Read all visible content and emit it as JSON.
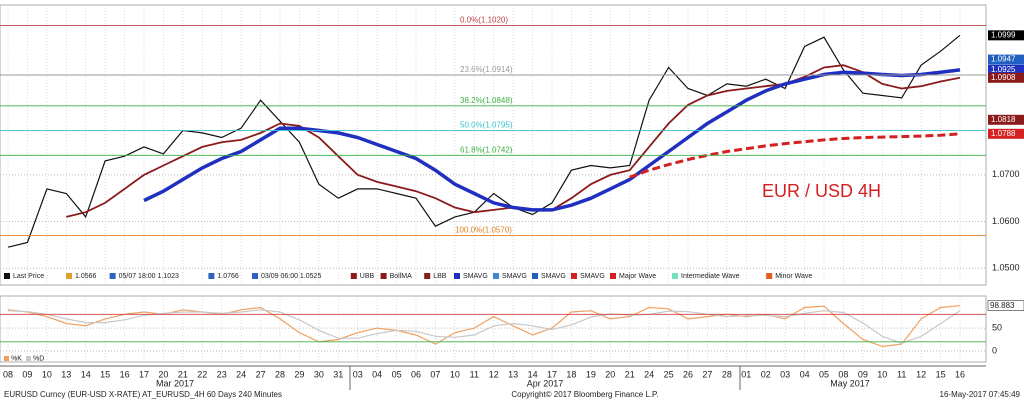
{
  "chart_data": [
    {
      "type": "line",
      "annotation": "EUR / USD 4H",
      "categories": [
        "08",
        "09",
        "10",
        "13",
        "14",
        "15",
        "16",
        "17",
        "20",
        "21",
        "22",
        "23",
        "24",
        "27",
        "28",
        "29",
        "30",
        "31",
        "03",
        "04",
        "05",
        "06",
        "07",
        "10",
        "11",
        "12",
        "13",
        "14",
        "17",
        "18",
        "19",
        "20",
        "21",
        "24",
        "25",
        "26",
        "27",
        "28",
        "01",
        "02",
        "03",
        "04",
        "05",
        "08",
        "09",
        "10",
        "11",
        "12",
        "15",
        "16"
      ],
      "months": [
        "Mar 2017",
        "Apr 2017",
        "May 2017"
      ],
      "series": [
        {
          "name": "Last Price",
          "color": "#111111",
          "values": [
            1.0545,
            1.0555,
            1.067,
            1.066,
            1.061,
            1.073,
            1.074,
            1.076,
            1.0745,
            1.0795,
            1.079,
            1.078,
            1.08,
            1.086,
            1.0815,
            1.077,
            1.068,
            1.065,
            1.067,
            1.067,
            1.066,
            1.065,
            1.059,
            1.061,
            1.062,
            1.066,
            1.063,
            1.0615,
            1.064,
            1.071,
            1.072,
            1.0715,
            1.072,
            1.086,
            1.093,
            1.0885,
            1.087,
            1.0895,
            1.089,
            1.0905,
            1.0885,
            1.0975,
            1.0995,
            1.0925,
            1.0875,
            1.087,
            1.0865,
            1.0935,
            1.0965,
            1.0999
          ]
        },
        {
          "name": "BollMA",
          "color": "#8b1a1a",
          "values": [
            null,
            null,
            null,
            1.061,
            1.062,
            1.064,
            1.067,
            1.07,
            1.072,
            1.074,
            1.076,
            1.077,
            1.0775,
            1.079,
            1.081,
            1.0805,
            1.078,
            1.074,
            1.07,
            1.0685,
            1.0675,
            1.0665,
            1.065,
            1.063,
            1.062,
            1.0625,
            1.063,
            1.0625,
            1.0625,
            1.065,
            1.068,
            1.07,
            1.071,
            1.076,
            1.081,
            1.085,
            1.087,
            1.088,
            1.0885,
            1.089,
            1.0895,
            1.091,
            1.093,
            1.0935,
            1.092,
            1.0895,
            1.0885,
            1.089,
            1.09,
            1.0908
          ]
        },
        {
          "name": "SMAVG",
          "color": "#1f2fbf",
          "values": [
            null,
            null,
            null,
            null,
            null,
            null,
            null,
            1.0645,
            1.0665,
            1.069,
            1.0715,
            1.0735,
            1.075,
            1.0775,
            1.08,
            1.08,
            1.0795,
            1.079,
            1.078,
            1.0765,
            1.075,
            1.0735,
            1.071,
            1.068,
            1.066,
            1.064,
            1.063,
            1.0625,
            1.0625,
            1.0635,
            1.065,
            1.067,
            1.069,
            1.072,
            1.075,
            1.078,
            1.081,
            1.0835,
            1.086,
            1.088,
            1.0895,
            1.0905,
            1.0915,
            1.092,
            1.0918,
            1.0915,
            1.0913,
            1.0915,
            1.092,
            1.0925
          ]
        },
        {
          "name": "SMAVG",
          "color": "#d42020",
          "values": [
            null,
            null,
            null,
            null,
            null,
            null,
            null,
            null,
            null,
            null,
            null,
            null,
            null,
            null,
            null,
            null,
            null,
            null,
            null,
            null,
            null,
            null,
            null,
            null,
            null,
            null,
            null,
            null,
            null,
            null,
            null,
            null,
            1.0695,
            1.071,
            1.0722,
            1.0733,
            1.0742,
            1.075,
            1.0756,
            1.0762,
            1.0767,
            1.0771,
            1.0775,
            1.0778,
            1.078,
            1.0781,
            1.0782,
            1.0783,
            1.0785,
            1.0788
          ]
        }
      ],
      "levels": [
        {
          "label": "0.0%(1.1020)",
          "value": 1.102,
          "color": "#c04040"
        },
        {
          "label": "23.6%(1.0914)",
          "value": 1.0914,
          "color": "#9a9a9a"
        },
        {
          "label": "38.2%(1.0848)",
          "value": 1.0848,
          "color": "#3cb043"
        },
        {
          "label": "50.0%(1.0795)",
          "value": 1.0795,
          "color": "#3cc0d0"
        },
        {
          "label": "61.8%(1.0742)",
          "value": 1.0742,
          "color": "#3cb043"
        },
        {
          "label": "100.0%(1.0570)",
          "value": 1.057,
          "color": "#e08020"
        }
      ],
      "price_tags": [
        {
          "value": 1.0999,
          "color": "#000000"
        },
        {
          "value": 1.0947,
          "color": "#1f5fbf"
        },
        {
          "value": 1.0925,
          "color": "#1f2fbf"
        },
        {
          "value": 1.0908,
          "color": "#8b1a1a"
        },
        {
          "value": 1.0818,
          "color": "#8b1a1a"
        },
        {
          "value": 1.0788,
          "color": "#d42020"
        }
      ],
      "legend_items": [
        {
          "label": "Last Price",
          "color": "#111111"
        },
        {
          "label": "1.0566",
          "color": "#e0a030"
        },
        {
          "label": "05/07 18:00 1.1023",
          "color": "#3060c0"
        },
        {
          "label": "1.0766",
          "color": "#3060c0"
        },
        {
          "label": "03/09 06:00 1.0525",
          "color": "#3060c0"
        },
        {
          "label": "UBB",
          "color": "#8b1a1a"
        },
        {
          "label": "BollMA",
          "color": "#8b1a1a"
        },
        {
          "label": "LBB",
          "color": "#8b1a1a"
        },
        {
          "label": "SMAVG",
          "color": "#1f2fbf"
        },
        {
          "label": "SMAVG",
          "color": "#3a8ad0"
        },
        {
          "label": "SMAVG",
          "color": "#1f5fbf"
        },
        {
          "label": "SMAVG",
          "color": "#d42020"
        },
        {
          "label": "Major Wave",
          "color": "#d42020"
        },
        {
          "label": "Intermediate Wave",
          "color": "#70e0c0"
        },
        {
          "label": "Minor Wave",
          "color": "#e06020"
        }
      ],
      "ylim": [
        1.0464,
        1.1064
      ],
      "yticks": [
        {
          "value": 1.05,
          "label": "1.0500"
        },
        {
          "value": 1.06,
          "label": "1.0600"
        },
        {
          "value": 1.07,
          "label": "1.0700"
        }
      ]
    },
    {
      "type": "line",
      "series": [
        {
          "name": "%K",
          "color": "#f0a060",
          "values": [
            90,
            85,
            75,
            60,
            55,
            70,
            80,
            85,
            80,
            90,
            85,
            80,
            90,
            95,
            70,
            40,
            20,
            25,
            40,
            50,
            45,
            35,
            15,
            40,
            50,
            75,
            55,
            35,
            50,
            85,
            88,
            70,
            75,
            95,
            92,
            70,
            75,
            80,
            75,
            80,
            70,
            95,
            98,
            60,
            25,
            10,
            15,
            70,
            95,
            98.883
          ]
        },
        {
          "name": "%D",
          "color": "#c8c8c8",
          "values": [
            88,
            86,
            80,
            70,
            62,
            62,
            68,
            78,
            82,
            85,
            85,
            82,
            85,
            90,
            85,
            68,
            45,
            28,
            28,
            38,
            45,
            43,
            32,
            30,
            35,
            55,
            60,
            55,
            47,
            57,
            74,
            81,
            78,
            80,
            87,
            86,
            80,
            75,
            77,
            78,
            75,
            82,
            88,
            84,
            61,
            32,
            17,
            32,
            60,
            88
          ]
        }
      ],
      "highlight": 98.883,
      "ylim": [
        -24,
        120
      ],
      "yticks": [
        0,
        50
      ],
      "bands": [
        {
          "value": 80,
          "color": "#d04040"
        },
        {
          "value": 20,
          "color": "#40b040"
        }
      ]
    }
  ],
  "footer": {
    "left": "EURUSD Curncy (EUR-USD X-RATE) AT_EURUSD_4H 60 Days 240 Minutes",
    "center": "Copyright© 2017 Bloomberg Finance L.P.",
    "right": "16-May-2017 07:45:49"
  }
}
